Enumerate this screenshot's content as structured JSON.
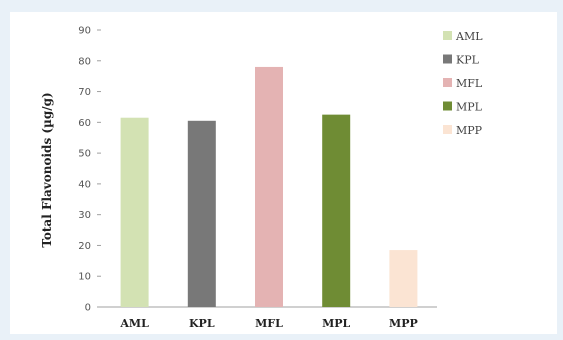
{
  "chart_data": {
    "type": "bar",
    "categories": [
      "AML",
      "KPL",
      "MFL",
      "MPL",
      "MPP"
    ],
    "values": [
      61.5,
      60.5,
      78,
      62.5,
      18.5
    ],
    "colors": [
      "#d3e2b3",
      "#787878",
      "#e4b3b3",
      "#6f8c34",
      "#fbe4d3"
    ],
    "ylabel": "Total Flavonoids (µg/g)",
    "ylim": [
      0,
      90
    ],
    "yticks": [
      0,
      10,
      20,
      30,
      40,
      50,
      60,
      70,
      80,
      90
    ],
    "grid": false,
    "legend_position": "right-top",
    "legend": [
      "AML",
      "KPL",
      "MFL",
      "MPL",
      "MPP"
    ]
  }
}
